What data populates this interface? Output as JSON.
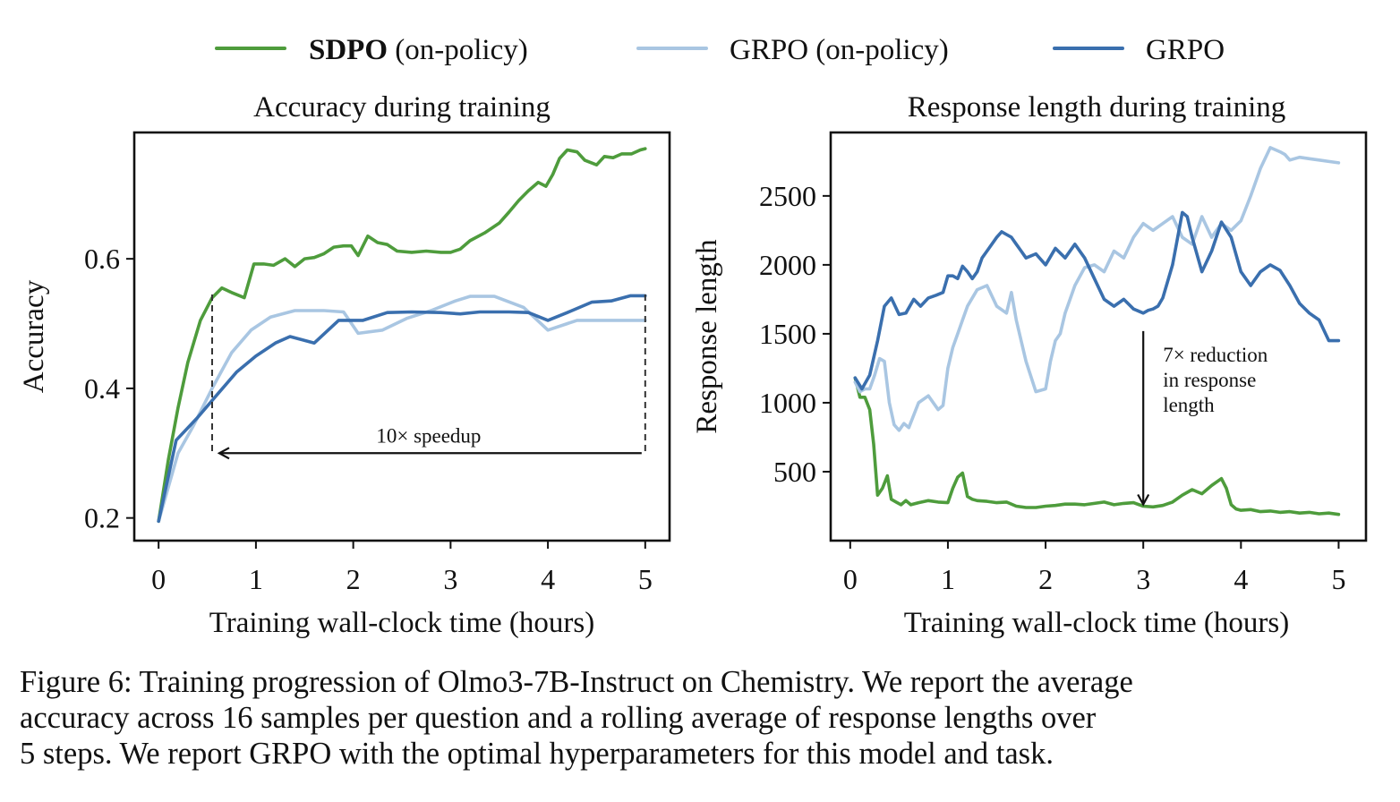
{
  "legend": [
    {
      "name": "SDPO",
      "suffix": " (on-policy)",
      "bold_name": true,
      "color": "#4e9c3c"
    },
    {
      "name": "GRPO (on-policy)",
      "suffix": "",
      "bold_name": false,
      "color": "#a9c6e2"
    },
    {
      "name": "GRPO",
      "suffix": "",
      "bold_name": false,
      "color": "#3a6fae"
    }
  ],
  "chart_data": [
    {
      "type": "line",
      "title": "Accuracy during training",
      "xlabel": "Training wall-clock time (hours)",
      "ylabel": "Accuracy",
      "xlim": [
        -0.25,
        5.25
      ],
      "ylim": [
        0.165,
        0.795
      ],
      "xticks": [
        0,
        1,
        2,
        3,
        4,
        5
      ],
      "yticks": [
        0.2,
        0.4,
        0.6
      ],
      "ytick_labels": [
        "0.2",
        "0.4",
        "0.6"
      ],
      "series": [
        {
          "name": "SDPO (on-policy)",
          "color": "#4e9c3c",
          "x": [
            0,
            0.1,
            0.2,
            0.3,
            0.43,
            0.55,
            0.65,
            0.75,
            0.88,
            0.98,
            1.08,
            1.18,
            1.3,
            1.4,
            1.5,
            1.6,
            1.7,
            1.8,
            1.9,
            1.98,
            2.05,
            2.15,
            2.25,
            2.35,
            2.45,
            2.6,
            2.75,
            2.9,
            3.0,
            3.1,
            3.2,
            3.35,
            3.5,
            3.6,
            3.7,
            3.8,
            3.9,
            3.98,
            4.05,
            4.12,
            4.2,
            4.3,
            4.38,
            4.5,
            4.58,
            4.67,
            4.76,
            4.86,
            4.95,
            5.0
          ],
          "y": [
            0.195,
            0.29,
            0.37,
            0.44,
            0.505,
            0.54,
            0.555,
            0.548,
            0.54,
            0.592,
            0.592,
            0.59,
            0.6,
            0.588,
            0.6,
            0.602,
            0.608,
            0.618,
            0.62,
            0.62,
            0.605,
            0.635,
            0.625,
            0.622,
            0.612,
            0.61,
            0.612,
            0.61,
            0.61,
            0.615,
            0.628,
            0.64,
            0.655,
            0.672,
            0.69,
            0.705,
            0.718,
            0.712,
            0.73,
            0.755,
            0.768,
            0.765,
            0.752,
            0.745,
            0.758,
            0.756,
            0.762,
            0.762,
            0.768,
            0.77
          ]
        },
        {
          "name": "GRPO (on-policy)",
          "color": "#a9c6e2",
          "x": [
            0,
            0.2,
            0.35,
            0.55,
            0.75,
            0.95,
            1.15,
            1.4,
            1.7,
            1.9,
            2.05,
            2.3,
            2.55,
            2.8,
            3.05,
            3.2,
            3.45,
            3.75,
            4.0,
            4.3,
            4.6,
            5.0
          ],
          "y": [
            0.195,
            0.3,
            0.34,
            0.4,
            0.455,
            0.49,
            0.51,
            0.52,
            0.52,
            0.518,
            0.485,
            0.49,
            0.508,
            0.52,
            0.535,
            0.542,
            0.542,
            0.525,
            0.49,
            0.505,
            0.505,
            0.505
          ]
        },
        {
          "name": "GRPO",
          "color": "#3a6fae",
          "x": [
            0,
            0.18,
            0.4,
            0.6,
            0.8,
            1.0,
            1.2,
            1.35,
            1.6,
            1.85,
            2.1,
            2.35,
            2.6,
            2.9,
            3.1,
            3.3,
            3.6,
            3.8,
            4.0,
            4.2,
            4.45,
            4.65,
            4.85,
            5.0
          ],
          "y": [
            0.195,
            0.32,
            0.355,
            0.39,
            0.425,
            0.45,
            0.47,
            0.48,
            0.47,
            0.505,
            0.505,
            0.517,
            0.518,
            0.517,
            0.515,
            0.518,
            0.518,
            0.517,
            0.505,
            0.517,
            0.533,
            0.535,
            0.543,
            0.543
          ]
        }
      ],
      "annotation": {
        "text": "10× speedup",
        "arrow_from_x": 5.0,
        "arrow_to_x": 0.55,
        "arrow_y": 0.3
      }
    },
    {
      "type": "line",
      "title": "Response length during training",
      "xlabel": "Training wall-clock time (hours)",
      "ylabel": "Response length",
      "xlim": [
        -0.2,
        5.28
      ],
      "ylim": [
        0,
        2960
      ],
      "xticks": [
        0,
        1,
        2,
        3,
        4,
        5
      ],
      "yticks": [
        500,
        1000,
        1500,
        2000,
        2500
      ],
      "ytick_labels": [
        "500",
        "1000",
        "1500",
        "2000",
        "2500"
      ],
      "series": [
        {
          "name": "SDPO (on-policy)",
          "color": "#4e9c3c",
          "x": [
            0.05,
            0.1,
            0.15,
            0.2,
            0.24,
            0.28,
            0.33,
            0.38,
            0.42,
            0.47,
            0.52,
            0.57,
            0.62,
            0.7,
            0.8,
            0.9,
            1.0,
            1.05,
            1.1,
            1.15,
            1.2,
            1.25,
            1.3,
            1.4,
            1.5,
            1.6,
            1.7,
            1.8,
            1.9,
            2.0,
            2.1,
            2.2,
            2.3,
            2.4,
            2.5,
            2.6,
            2.7,
            2.8,
            2.9,
            3.0,
            3.1,
            3.2,
            3.3,
            3.4,
            3.5,
            3.6,
            3.7,
            3.8,
            3.85,
            3.9,
            3.95,
            4.0,
            4.1,
            4.2,
            4.3,
            4.4,
            4.5,
            4.6,
            4.7,
            4.8,
            4.9,
            5.0
          ],
          "y": [
            1180,
            1040,
            1040,
            950,
            700,
            330,
            380,
            470,
            300,
            280,
            260,
            290,
            260,
            275,
            290,
            280,
            275,
            380,
            460,
            490,
            320,
            300,
            290,
            285,
            275,
            280,
            250,
            240,
            240,
            250,
            255,
            265,
            265,
            260,
            270,
            280,
            260,
            270,
            275,
            250,
            245,
            255,
            280,
            330,
            370,
            340,
            400,
            450,
            380,
            260,
            230,
            220,
            225,
            210,
            215,
            205,
            210,
            200,
            205,
            195,
            200,
            190
          ]
        },
        {
          "name": "GRPO (on-policy)",
          "color": "#a9c6e2",
          "x": [
            0.05,
            0.1,
            0.15,
            0.2,
            0.25,
            0.3,
            0.35,
            0.4,
            0.45,
            0.5,
            0.55,
            0.6,
            0.7,
            0.8,
            0.9,
            0.95,
            1.0,
            1.05,
            1.1,
            1.15,
            1.2,
            1.3,
            1.4,
            1.5,
            1.6,
            1.65,
            1.7,
            1.8,
            1.9,
            2.0,
            2.05,
            2.1,
            2.15,
            2.2,
            2.25,
            2.3,
            2.4,
            2.5,
            2.6,
            2.7,
            2.8,
            2.9,
            3.0,
            3.1,
            3.2,
            3.3,
            3.4,
            3.5,
            3.6,
            3.7,
            3.8,
            3.9,
            4.0,
            4.1,
            4.2,
            4.3,
            4.4,
            4.45,
            4.5,
            4.6,
            4.7,
            4.8,
            4.9,
            5.0
          ],
          "y": [
            1150,
            1080,
            1100,
            1100,
            1200,
            1320,
            1300,
            1000,
            840,
            800,
            850,
            820,
            1000,
            1050,
            950,
            980,
            1250,
            1400,
            1500,
            1600,
            1700,
            1820,
            1850,
            1700,
            1650,
            1800,
            1600,
            1300,
            1080,
            1100,
            1300,
            1450,
            1500,
            1650,
            1750,
            1850,
            1980,
            2000,
            1950,
            2100,
            2050,
            2200,
            2300,
            2250,
            2300,
            2350,
            2200,
            2150,
            2350,
            2200,
            2300,
            2250,
            2320,
            2500,
            2700,
            2850,
            2820,
            2800,
            2760,
            2780,
            2770,
            2760,
            2750,
            2740
          ]
        },
        {
          "name": "GRPO",
          "color": "#3a6fae",
          "x": [
            0.05,
            0.12,
            0.2,
            0.28,
            0.35,
            0.42,
            0.5,
            0.57,
            0.65,
            0.72,
            0.8,
            0.88,
            0.95,
            1.0,
            1.05,
            1.1,
            1.15,
            1.2,
            1.25,
            1.3,
            1.35,
            1.4,
            1.5,
            1.55,
            1.6,
            1.65,
            1.7,
            1.75,
            1.8,
            1.9,
            2.0,
            2.1,
            2.2,
            2.3,
            2.4,
            2.5,
            2.6,
            2.7,
            2.8,
            2.9,
            3.0,
            3.05,
            3.1,
            3.15,
            3.2,
            3.3,
            3.4,
            3.45,
            3.5,
            3.6,
            3.7,
            3.8,
            3.9,
            4.0,
            4.1,
            4.2,
            4.3,
            4.4,
            4.5,
            4.6,
            4.7,
            4.8,
            4.9,
            5.0
          ],
          "y": [
            1180,
            1100,
            1200,
            1450,
            1700,
            1760,
            1640,
            1650,
            1750,
            1700,
            1760,
            1780,
            1800,
            1920,
            1920,
            1900,
            1990,
            1950,
            1900,
            1950,
            2050,
            2100,
            2200,
            2240,
            2220,
            2200,
            2150,
            2100,
            2050,
            2080,
            2000,
            2120,
            2050,
            2150,
            2050,
            1900,
            1750,
            1700,
            1750,
            1680,
            1650,
            1670,
            1680,
            1700,
            1760,
            2000,
            2380,
            2350,
            2200,
            1950,
            2100,
            2310,
            2200,
            1950,
            1850,
            1950,
            2000,
            1960,
            1850,
            1720,
            1650,
            1600,
            1450,
            1450
          ]
        }
      ],
      "annotation": {
        "lines": [
          "7× reduction",
          "in response",
          "length"
        ],
        "arrow_x": 3.0,
        "arrow_from_y": 1520,
        "arrow_to_y": 250
      }
    }
  ],
  "caption": {
    "lines": [
      "Figure 6: Training progression of Olmo3-7B-Instruct on Chemistry. We report the average",
      "accuracy across 16 samples per question and a rolling average of response lengths over",
      "5 steps. We report GRPO with the optimal hyperparameters for this model and task."
    ]
  }
}
